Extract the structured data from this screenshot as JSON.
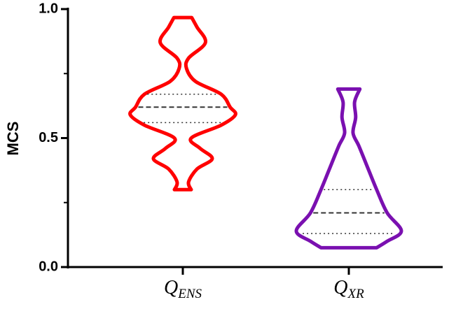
{
  "chart_data": {
    "type": "violin",
    "y_label": "MCS",
    "ylim": [
      0,
      1
    ],
    "yticks": [
      {
        "value": 0,
        "label": "0.0"
      },
      {
        "value": 0.5,
        "label": "0.5"
      },
      {
        "value": 1,
        "label": "1.0"
      }
    ],
    "yminor_ticks": [
      0.25,
      0.75
    ],
    "categories": [
      {
        "label": "Q",
        "subscript": "ENS"
      },
      {
        "label": "Q",
        "subscript": "XR"
      }
    ],
    "series": [
      {
        "color": "#ff0000",
        "y": [
          0.967,
          0.93,
          0.87,
          0.81,
          0.77,
          0.72,
          0.67,
          0.62,
          0.59,
          0.55,
          0.5,
          0.46,
          0.42,
          0.38,
          0.33,
          0.3
        ],
        "density": [
          0.17,
          0.27,
          0.43,
          0.11,
          0.07,
          0.24,
          0.73,
          0.9,
          1.0,
          0.73,
          0.16,
          0.33,
          0.56,
          0.27,
          0.11,
          0.16
        ],
        "q1": 0.56,
        "median": 0.62,
        "q3": 0.67
      },
      {
        "color": "#7a10b0",
        "y": [
          0.69,
          0.64,
          0.58,
          0.52,
          0.47,
          0.4,
          0.3,
          0.21,
          0.14,
          0.1,
          0.075
        ],
        "density": [
          0.21,
          0.11,
          0.13,
          0.08,
          0.19,
          0.33,
          0.53,
          0.73,
          1.0,
          0.73,
          0.53
        ],
        "q1": 0.13,
        "median": 0.21,
        "q3": 0.3
      }
    ]
  }
}
